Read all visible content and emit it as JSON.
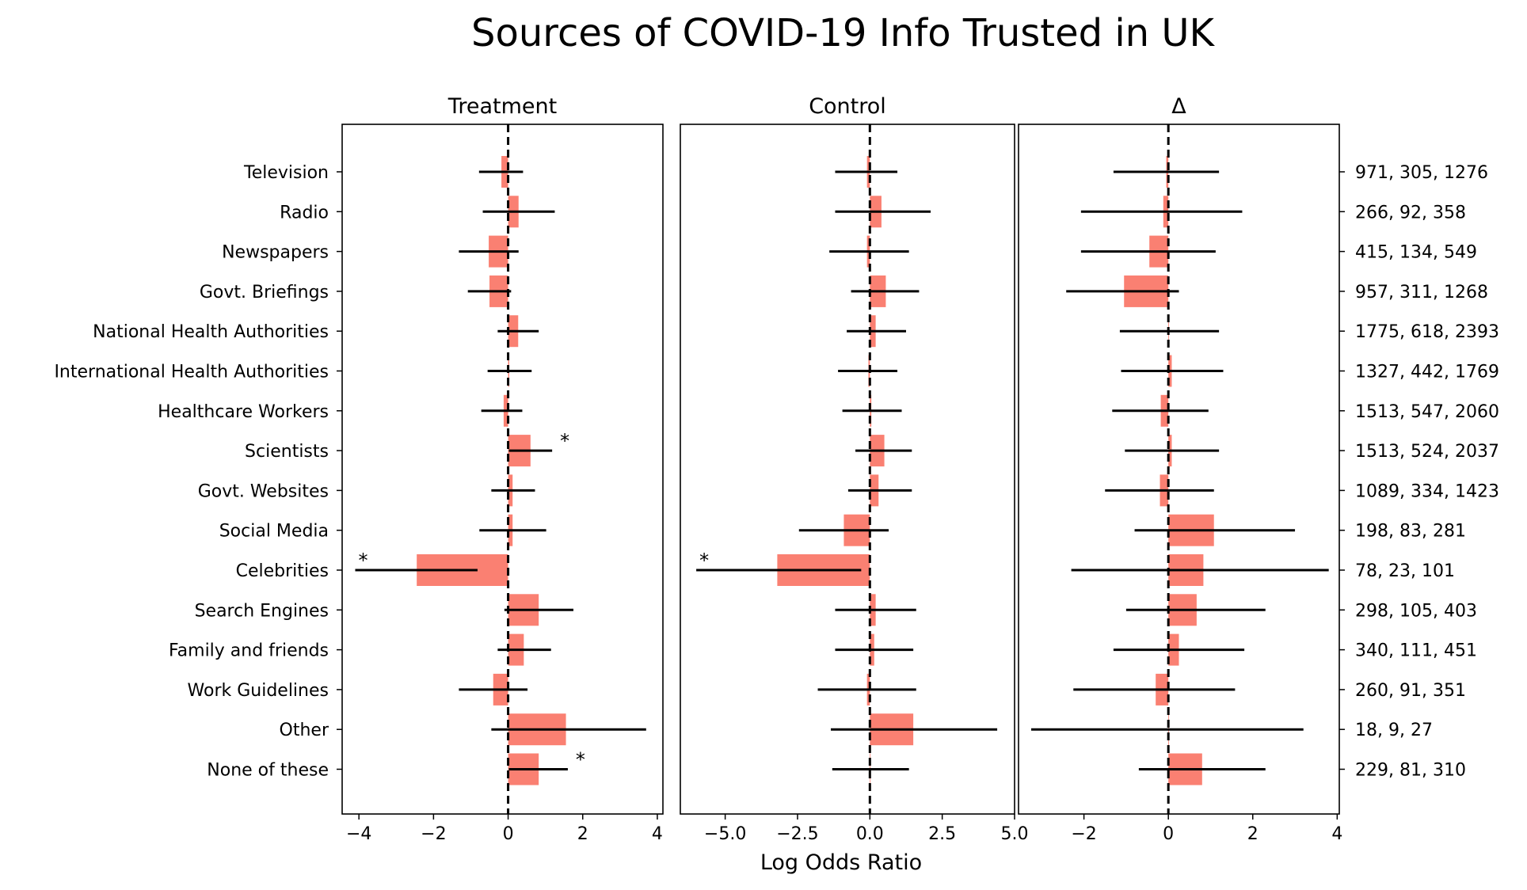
{
  "title": "Sources of COVID-19 Info Trusted in UK",
  "xlabel": "Log Odds Ratio",
  "colors": {
    "bar": "#fa8072",
    "errorbar": "#000000",
    "zero_line": "#000000"
  },
  "chart_data": {
    "type": "bar",
    "orientation": "horizontal",
    "categories": [
      "Television",
      "Radio",
      "Newspapers",
      "Govt. Briefings",
      "National Health Authorities",
      "International Health Authorities",
      "Healthcare Workers",
      "Scientists",
      "Govt. Websites",
      "Social Media",
      "Celebrities",
      "Search Engines",
      "Family and friends",
      "Work Guidelines",
      "Other",
      "None of these"
    ],
    "row_labels": [
      "971, 305, 1276",
      "266, 92, 358",
      "415, 134, 549",
      "957, 311, 1268",
      "1775, 618, 2393",
      "1327, 442, 1769",
      "1513, 547, 2060",
      "1513, 524, 2037",
      "1089, 334, 1423",
      "198, 83, 281",
      "78, 23, 101",
      "298, 105, 403",
      "340, 111, 451",
      "260, 91, 351",
      "18, 9, 27",
      "229, 81, 310"
    ],
    "panels": [
      {
        "title": "Treatment",
        "xlim": [
          -4.45,
          4.15
        ],
        "xticks": [
          -4,
          -2,
          0,
          2,
          4
        ],
        "xtick_labels": [
          "−4",
          "−2",
          "0",
          "2",
          "4"
        ],
        "values": [
          -0.18,
          0.28,
          -0.52,
          -0.5,
          0.27,
          0.03,
          -0.12,
          0.6,
          0.12,
          0.12,
          -2.45,
          0.82,
          0.42,
          -0.4,
          1.55,
          0.82
        ],
        "ci_low": [
          -0.78,
          -0.68,
          -1.32,
          -1.08,
          -0.28,
          -0.55,
          -0.72,
          0.02,
          -0.45,
          -0.77,
          -4.1,
          -0.1,
          -0.28,
          -1.32,
          -0.45,
          0.02
        ],
        "ci_high": [
          0.4,
          1.25,
          0.28,
          0.08,
          0.82,
          0.63,
          0.38,
          1.18,
          0.72,
          1.02,
          -0.82,
          1.75,
          1.15,
          0.52,
          3.7,
          1.6
        ],
        "significant": [
          false,
          false,
          false,
          false,
          false,
          false,
          false,
          true,
          false,
          false,
          true,
          false,
          false,
          false,
          false,
          true
        ]
      },
      {
        "title": "Control",
        "xlim": [
          -6.55,
          5.0
        ],
        "xticks": [
          -5.0,
          -2.5,
          0.0,
          2.5,
          5.0
        ],
        "xtick_labels": [
          "−5.0",
          "−2.5",
          "0.0",
          "2.5",
          "5.0"
        ],
        "values": [
          -0.1,
          0.4,
          -0.1,
          0.55,
          0.2,
          -0.05,
          0.05,
          0.5,
          0.3,
          -0.9,
          -3.2,
          0.2,
          0.15,
          -0.1,
          1.5,
          0.0
        ],
        "ci_low": [
          -1.2,
          -1.2,
          -1.4,
          -0.65,
          -0.8,
          -1.1,
          -0.95,
          -0.5,
          -0.75,
          -2.45,
          -6.0,
          -1.2,
          -1.2,
          -1.8,
          -1.35,
          -1.3
        ],
        "ci_high": [
          0.95,
          2.1,
          1.35,
          1.7,
          1.25,
          0.95,
          1.1,
          1.45,
          1.45,
          0.65,
          -0.3,
          1.6,
          1.5,
          1.6,
          4.4,
          1.35
        ],
        "significant": [
          false,
          false,
          false,
          false,
          false,
          false,
          false,
          false,
          false,
          false,
          true,
          false,
          false,
          false,
          false,
          false
        ]
      },
      {
        "title": "Δ",
        "xlim": [
          -3.55,
          4.05
        ],
        "xticks": [
          -2,
          0,
          2,
          4
        ],
        "xtick_labels": [
          "−2",
          "0",
          "2",
          "4"
        ],
        "values": [
          -0.05,
          -0.12,
          -0.45,
          -1.05,
          0.0,
          0.08,
          -0.18,
          0.08,
          -0.2,
          1.08,
          0.83,
          0.67,
          0.25,
          -0.3,
          0.0,
          0.8
        ],
        "ci_low": [
          -1.3,
          -2.07,
          -2.07,
          -2.42,
          -1.15,
          -1.12,
          -1.33,
          -1.03,
          -1.5,
          -0.8,
          -2.3,
          -1.0,
          -1.3,
          -2.25,
          -3.25,
          -0.7
        ],
        "ci_high": [
          1.2,
          1.75,
          1.12,
          0.25,
          1.2,
          1.3,
          0.95,
          1.2,
          1.08,
          3.0,
          3.8,
          2.3,
          1.8,
          1.58,
          3.2,
          2.3
        ],
        "significant": [
          false,
          false,
          false,
          false,
          false,
          false,
          false,
          false,
          false,
          false,
          false,
          false,
          false,
          false,
          false,
          false
        ]
      }
    ]
  }
}
